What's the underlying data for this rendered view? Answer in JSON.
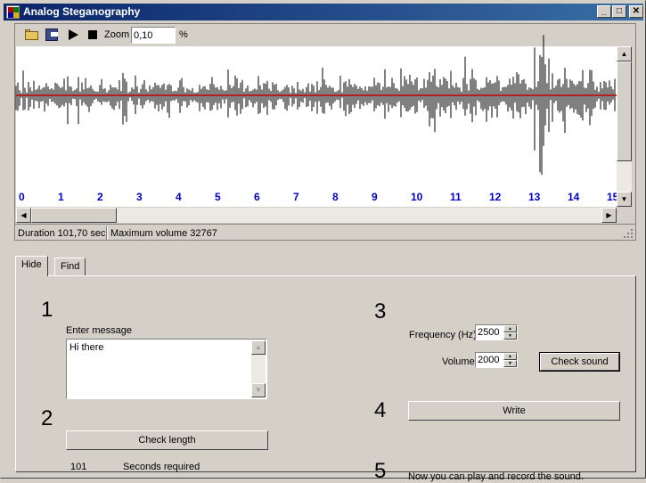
{
  "window": {
    "title": "Analog Steganography",
    "minimize_icon": "minimize-icon",
    "maximize_icon": "maximize-icon",
    "close_icon": "close-icon"
  },
  "toolbar": {
    "open_icon": "folder-open-icon",
    "save_icon": "save-disk-icon",
    "play_icon": "play-icon",
    "stop_icon": "stop-icon",
    "zoom_label": "Zoom",
    "zoom_value": "0,10",
    "zoom_unit": "%"
  },
  "waveform": {
    "time_ticks": [
      "0",
      "1",
      "2",
      "3",
      "4",
      "5",
      "6",
      "7",
      "8",
      "9",
      "10",
      "11",
      "12",
      "13",
      "14",
      "15"
    ],
    "wave_color": "#000000",
    "baseline_color": "#c00000",
    "tick_color": "#0000c8"
  },
  "status": {
    "duration": "Duration 101,70 sec",
    "max_volume": "Maximum volume 32767"
  },
  "tabs": [
    {
      "label": "Hide",
      "active": true
    },
    {
      "label": "Find",
      "active": false
    }
  ],
  "hide": {
    "step1": "1",
    "enter_message_label": "Enter message",
    "message_value": "Hi there",
    "step2": "2",
    "check_length_label": "Check length",
    "seconds_value": "101",
    "seconds_label": "Seconds required",
    "step3": "3",
    "frequency_label": "Frequency (Hz)",
    "frequency_value": "2500",
    "volume_label": "Volume",
    "volume_value": "2000",
    "check_sound_label": "Check sound",
    "step4": "4",
    "write_label": "Write",
    "step5": "5",
    "final_note": "Now you can play and record the sound."
  }
}
